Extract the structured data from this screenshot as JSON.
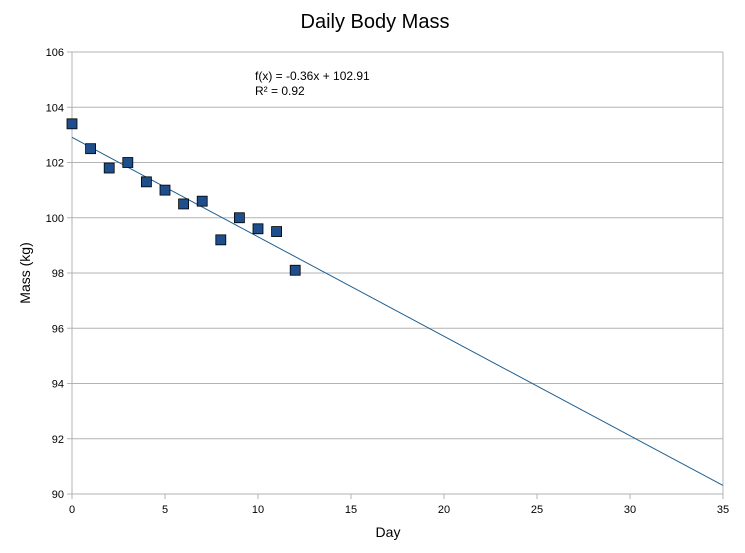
{
  "chart_data": {
    "type": "scatter",
    "title": "Daily Body Mass",
    "xlabel": "Day",
    "ylabel": "Mass (kg)",
    "xlim": [
      0,
      35
    ],
    "ylim": [
      90,
      106
    ],
    "x_ticks": [
      0,
      5,
      10,
      15,
      20,
      25,
      30,
      35
    ],
    "y_ticks": [
      90,
      92,
      94,
      96,
      98,
      100,
      102,
      104,
      106
    ],
    "grid": "horizontal",
    "legend": "none",
    "series": [
      {
        "marker": "square",
        "color": "#1f4e8c",
        "points": [
          {
            "x": 0,
            "y": 103.4
          },
          {
            "x": 1,
            "y": 102.5
          },
          {
            "x": 2,
            "y": 101.8
          },
          {
            "x": 3,
            "y": 102.0
          },
          {
            "x": 4,
            "y": 101.3
          },
          {
            "x": 5,
            "y": 101.0
          },
          {
            "x": 6,
            "y": 100.5
          },
          {
            "x": 7,
            "y": 100.6
          },
          {
            "x": 8,
            "y": 99.2
          },
          {
            "x": 9,
            "y": 100.0
          },
          {
            "x": 10,
            "y": 99.6
          },
          {
            "x": 11,
            "y": 99.5
          },
          {
            "x": 12,
            "y": 98.1
          }
        ]
      }
    ],
    "trendline": {
      "type": "linear",
      "slope": -0.36,
      "intercept": 102.91,
      "x_range": [
        0,
        35
      ],
      "color": "#1f5f8f",
      "equation_label": "f(x) = -0.36x + 102.91",
      "r2_label": "R² = 0.92"
    }
  }
}
